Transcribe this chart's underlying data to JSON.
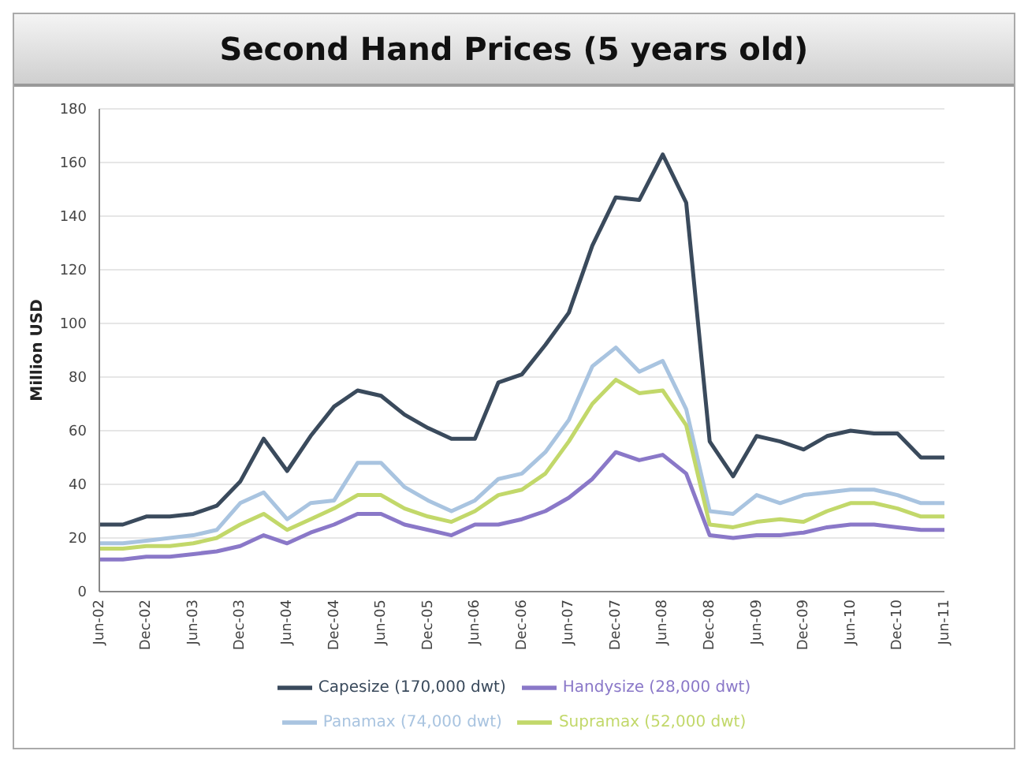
{
  "chart_data": {
    "type": "line",
    "title": "Second Hand Prices (5 years old)",
    "ylabel": "Million USD",
    "categories": [
      "Jun-02",
      null,
      "Dec-02",
      null,
      "Jun-03",
      null,
      "Dec-03",
      null,
      "Jun-04",
      null,
      "Dec-04",
      null,
      "Jun-05",
      null,
      "Dec-05",
      null,
      "Jun-06",
      null,
      "Dec-06",
      null,
      "Jun-07",
      null,
      "Dec-07",
      null,
      "Jun-08",
      null,
      "Dec-08",
      null,
      "Jun-09",
      null,
      "Dec-09",
      null,
      "Jun-10",
      null,
      "Dec-10",
      null,
      "Jun-11"
    ],
    "series": [
      {
        "name": "Capesize (170,000 dwt)",
        "color": "#3a4a5c",
        "values": [
          25,
          25,
          28,
          28,
          29,
          32,
          41,
          57,
          45,
          58,
          69,
          75,
          73,
          66,
          61,
          57,
          57,
          78,
          81,
          92,
          104,
          129,
          147,
          146,
          163,
          145,
          56,
          43,
          58,
          56,
          53,
          58,
          60,
          59,
          59,
          50,
          50
        ]
      },
      {
        "name": "Panamax (74,000 dwt)",
        "color": "#a9c4e0",
        "values": [
          18,
          18,
          19,
          20,
          21,
          23,
          33,
          37,
          27,
          33,
          34,
          48,
          48,
          39,
          34,
          30,
          34,
          42,
          44,
          52,
          64,
          84,
          91,
          82,
          86,
          68,
          30,
          29,
          36,
          33,
          36,
          37,
          38,
          38,
          36,
          33,
          33
        ]
      },
      {
        "name": "Supramax (52,000 dwt)",
        "color": "#c2d86a",
        "values": [
          16,
          16,
          17,
          17,
          18,
          20,
          25,
          29,
          23,
          27,
          31,
          36,
          36,
          31,
          28,
          26,
          30,
          36,
          38,
          44,
          56,
          70,
          79,
          74,
          75,
          62,
          25,
          24,
          26,
          27,
          26,
          30,
          33,
          33,
          31,
          28,
          28
        ]
      },
      {
        "name": "Handysize (28,000 dwt)",
        "color": "#8a78c8",
        "values": [
          12,
          12,
          13,
          13,
          14,
          15,
          17,
          21,
          18,
          22,
          25,
          29,
          29,
          25,
          23,
          21,
          25,
          25,
          27,
          30,
          35,
          42,
          52,
          49,
          51,
          44,
          21,
          20,
          21,
          21,
          22,
          24,
          25,
          25,
          24,
          23,
          23
        ]
      }
    ],
    "ylim": [
      0,
      180
    ],
    "yticks": [
      0,
      20,
      40,
      60,
      80,
      100,
      120,
      140,
      160,
      180
    ],
    "grid": "y",
    "legend": "bottom",
    "marker": "none",
    "line_style": "solid"
  }
}
